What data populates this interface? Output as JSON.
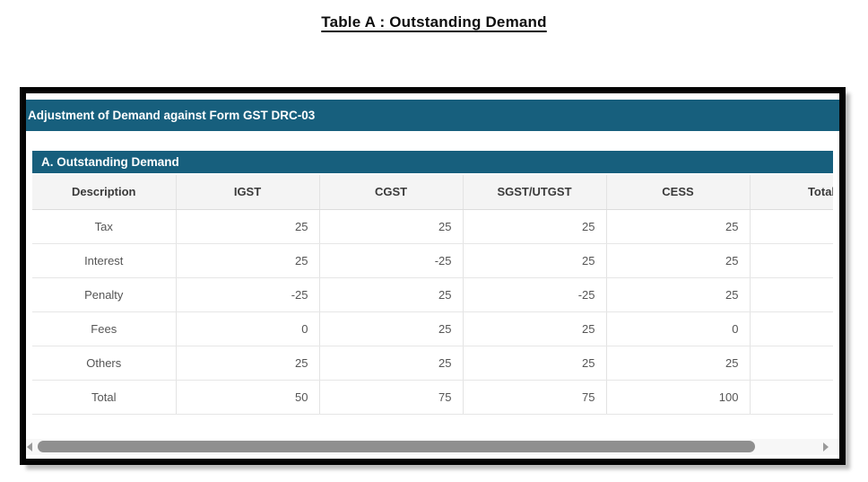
{
  "page": {
    "title": "Table A : Outstanding Demand"
  },
  "panel": {
    "header": "Adjustment of Demand against Form GST DRC-03",
    "section_title": "A. Outstanding Demand"
  },
  "table": {
    "columns": [
      "Description",
      "IGST",
      "CGST",
      "SGST/UTGST",
      "CESS",
      "Total"
    ],
    "rows": [
      [
        "Tax",
        "25",
        "25",
        "25",
        "25",
        ""
      ],
      [
        "Interest",
        "25",
        "-25",
        "25",
        "25",
        ""
      ],
      [
        "Penalty",
        "-25",
        "25",
        "-25",
        "25",
        ""
      ],
      [
        "Fees",
        "0",
        "25",
        "25",
        "0",
        ""
      ],
      [
        "Others",
        "25",
        "25",
        "25",
        "25",
        ""
      ],
      [
        "Total",
        "50",
        "75",
        "75",
        "100",
        ""
      ]
    ]
  },
  "colors": {
    "header_teal": "#175f7d",
    "border_black": "#050505",
    "scrollbar_thumb": "#8f8f8f",
    "header_row_bg": "#f4f4f4"
  }
}
